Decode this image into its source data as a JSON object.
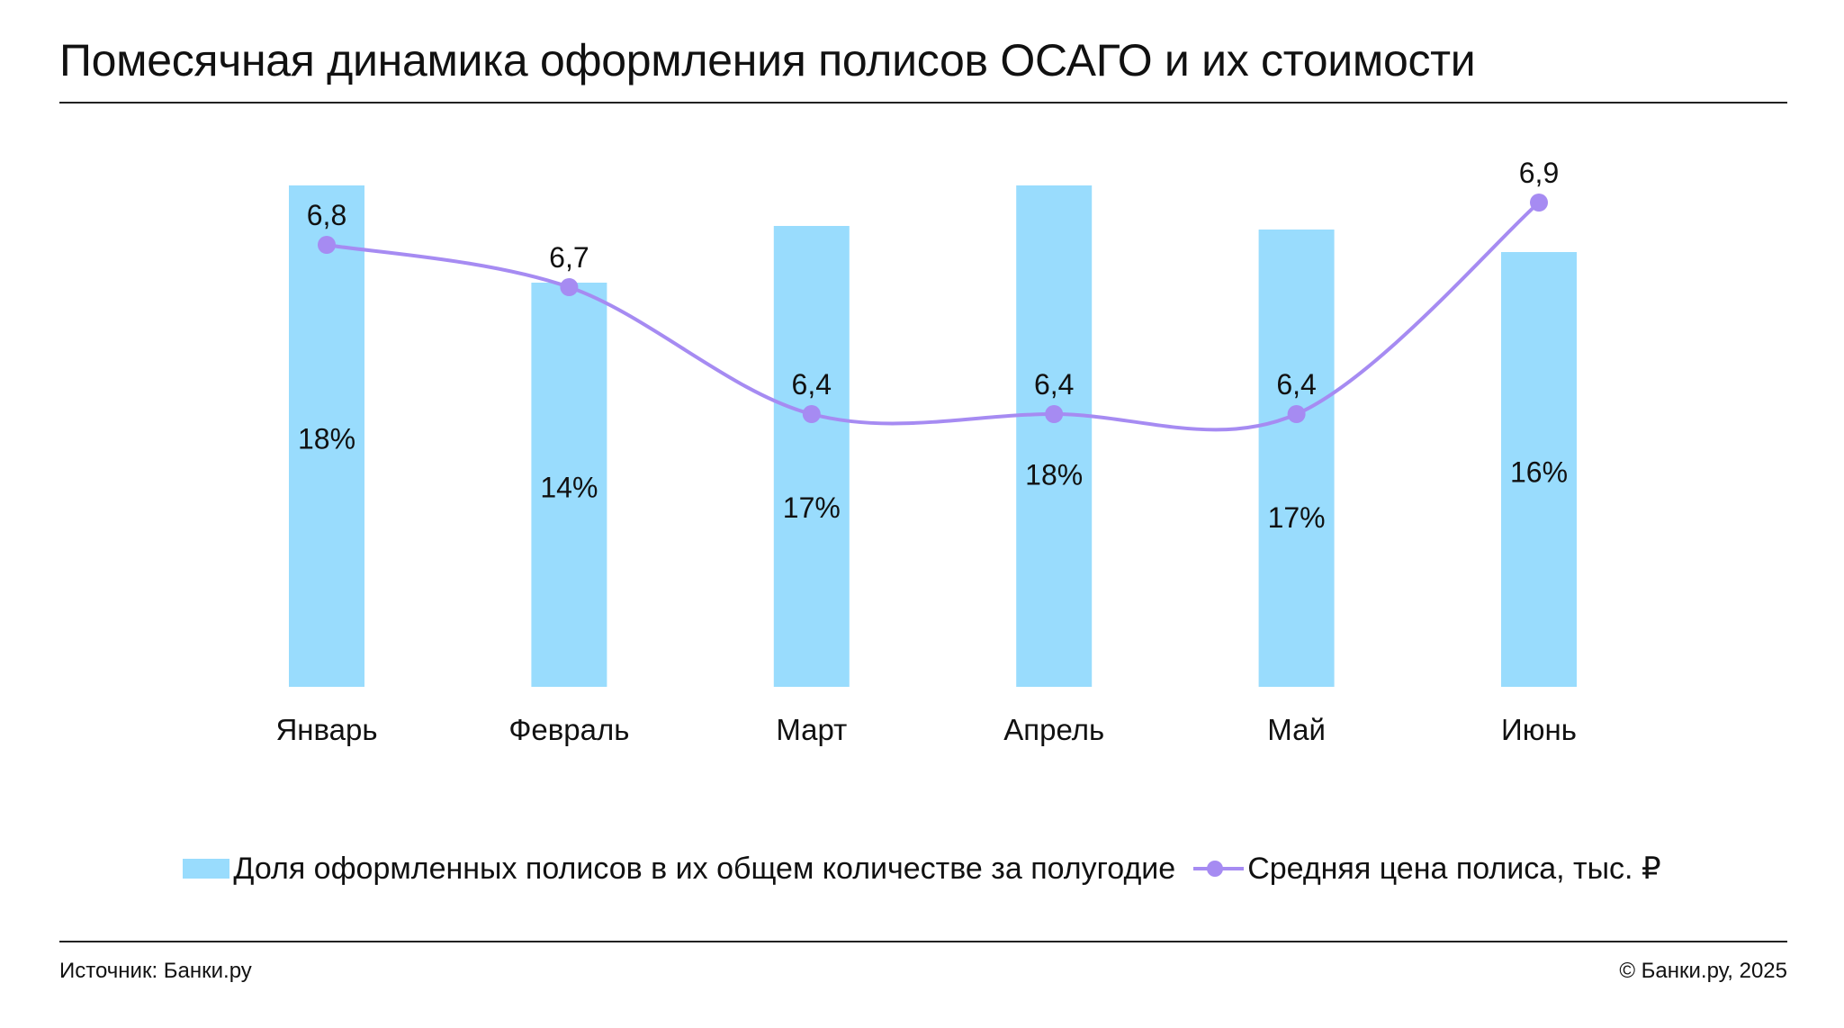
{
  "header": {
    "title": "Помесячная динамика оформления полисов ОСАГО и их стоимости"
  },
  "colors": {
    "bar": "#99dcfd",
    "line": "#a68bf2",
    "text": "#111111"
  },
  "chart_data": {
    "type": "bar",
    "title": "Помесячная динамика оформления полисов ОСАГО и их стоимости",
    "categories": [
      "Январь",
      "Февраль",
      "Март",
      "Апрель",
      "Май",
      "Июнь"
    ],
    "series": [
      {
        "name": "Доля оформленных полисов в их общем количестве за полугодие",
        "type": "bar",
        "values": [
          18,
          14,
          17,
          18,
          17,
          16
        ],
        "labels": [
          "18%",
          "14%",
          "17%",
          "18%",
          "17%",
          "16%"
        ]
      },
      {
        "name": "Средняя цена полиса, тыс. ₽",
        "type": "line",
        "values": [
          6.8,
          6.7,
          6.4,
          6.4,
          6.4,
          6.9
        ],
        "labels": [
          "6,8",
          "6,7",
          "6,4",
          "6,4",
          "6,4",
          "6,9"
        ]
      }
    ],
    "legend_position": "bottom",
    "grid": false
  },
  "legend": {
    "bar_label": "Доля оформленных полисов в их общем количестве за полугодие",
    "line_label": "Средняя цена полиса, тыс. ₽"
  },
  "footer": {
    "source": "Источник: Банки.ру",
    "copyright": "© Банки.ру, 2025"
  }
}
